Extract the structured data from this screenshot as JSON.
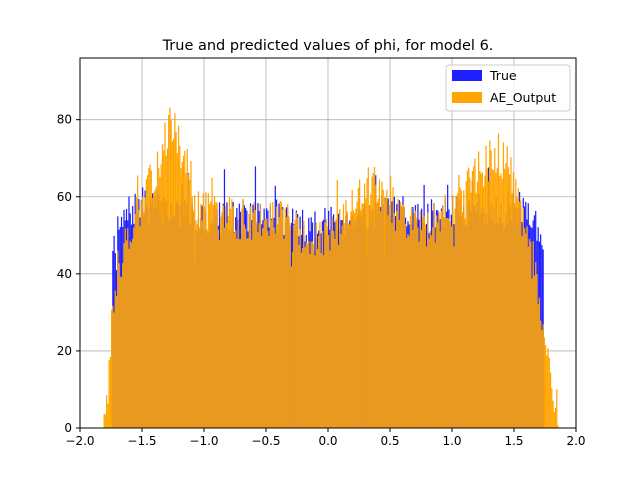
{
  "chart_data": {
    "type": "bar",
    "subtype": "histogram-overlay",
    "title": "True and predicted values of phi, for model 6.",
    "xlabel": "",
    "ylabel": "",
    "xlim": [
      -2.0,
      2.0
    ],
    "ylim": [
      0,
      96
    ],
    "grid": true,
    "legend_position": "top-right",
    "bin_width": 0.01,
    "xticks": [
      -2.0,
      -1.5,
      -1.0,
      -0.5,
      0.0,
      0.5,
      1.0,
      1.5,
      2.0
    ],
    "xtick_labels": [
      "−2.0",
      "−1.5",
      "−1.0",
      "−0.5",
      "0.0",
      "0.5",
      "1.0",
      "1.5",
      "2.0"
    ],
    "yticks": [
      0,
      20,
      40,
      60,
      80
    ],
    "ytick_labels": [
      "0",
      "20",
      "40",
      "60",
      "80"
    ],
    "series": [
      {
        "name": "True",
        "color": "#1f1fff",
        "range": [
          -1.74,
          1.74
        ],
        "envelope": [
          [
            -1.74,
            48
          ],
          [
            -1.6,
            56
          ],
          [
            -1.5,
            58
          ],
          [
            -1.2,
            56
          ],
          [
            -1.0,
            54
          ],
          [
            -0.7,
            55
          ],
          [
            -0.4,
            55
          ],
          [
            -0.15,
            52
          ],
          [
            0.0,
            53
          ],
          [
            0.2,
            55
          ],
          [
            0.5,
            56
          ],
          [
            0.8,
            55
          ],
          [
            1.1,
            56
          ],
          [
            1.4,
            57
          ],
          [
            1.6,
            57
          ],
          [
            1.74,
            50
          ]
        ],
        "spread": 9,
        "seed": 7
      },
      {
        "name": "AE_Output",
        "color": "#ffa500",
        "range": [
          -1.82,
          1.86
        ],
        "envelope": [
          [
            -1.82,
            0
          ],
          [
            -1.78,
            8
          ],
          [
            -1.74,
            28
          ],
          [
            -1.7,
            40
          ],
          [
            -1.6,
            52
          ],
          [
            -1.5,
            57
          ],
          [
            -1.4,
            66
          ],
          [
            -1.3,
            76
          ],
          [
            -1.25,
            78
          ],
          [
            -1.15,
            70
          ],
          [
            -1.05,
            57
          ],
          [
            -0.9,
            55
          ],
          [
            -0.6,
            54
          ],
          [
            -0.4,
            56
          ],
          [
            -0.2,
            49
          ],
          [
            -0.1,
            48
          ],
          [
            0.05,
            50
          ],
          [
            0.2,
            57
          ],
          [
            0.3,
            63
          ],
          [
            0.4,
            62
          ],
          [
            0.6,
            54
          ],
          [
            0.8,
            52
          ],
          [
            1.0,
            57
          ],
          [
            1.2,
            66
          ],
          [
            1.35,
            71
          ],
          [
            1.45,
            68
          ],
          [
            1.55,
            56
          ],
          [
            1.65,
            42
          ],
          [
            1.72,
            30
          ],
          [
            1.78,
            14
          ],
          [
            1.84,
            3
          ],
          [
            1.86,
            0
          ]
        ],
        "spread": 11,
        "seed": 13
      }
    ],
    "overlap_color": "#e99a1f"
  }
}
